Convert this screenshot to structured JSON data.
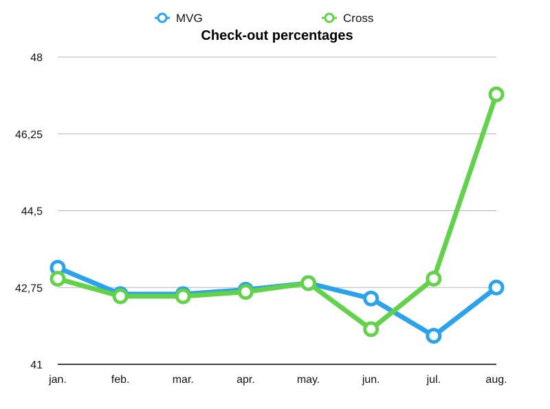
{
  "chart_data": {
    "type": "line",
    "title": "Check-out percentages",
    "categories": [
      "jan.",
      "feb.",
      "mar.",
      "apr.",
      "may.",
      "jun.",
      "jul.",
      "aug."
    ],
    "series": [
      {
        "name": "MVG",
        "color": "#2aa3ec",
        "values": [
          43.2,
          42.6,
          42.6,
          42.7,
          42.85,
          42.5,
          41.65,
          42.75
        ]
      },
      {
        "name": "Cross",
        "color": "#62d24a",
        "values": [
          42.95,
          42.55,
          42.55,
          42.65,
          42.85,
          41.8,
          42.95,
          47.15
        ]
      }
    ],
    "yticks": [
      {
        "value": 41,
        "label": "41"
      },
      {
        "value": 42.75,
        "label": "42,75"
      },
      {
        "value": 44.5,
        "label": "44,5"
      },
      {
        "value": 46.25,
        "label": "46,25"
      },
      {
        "value": 48,
        "label": "48"
      }
    ],
    "ylim": [
      41,
      48
    ],
    "grid": true,
    "legend": "top-center"
  }
}
